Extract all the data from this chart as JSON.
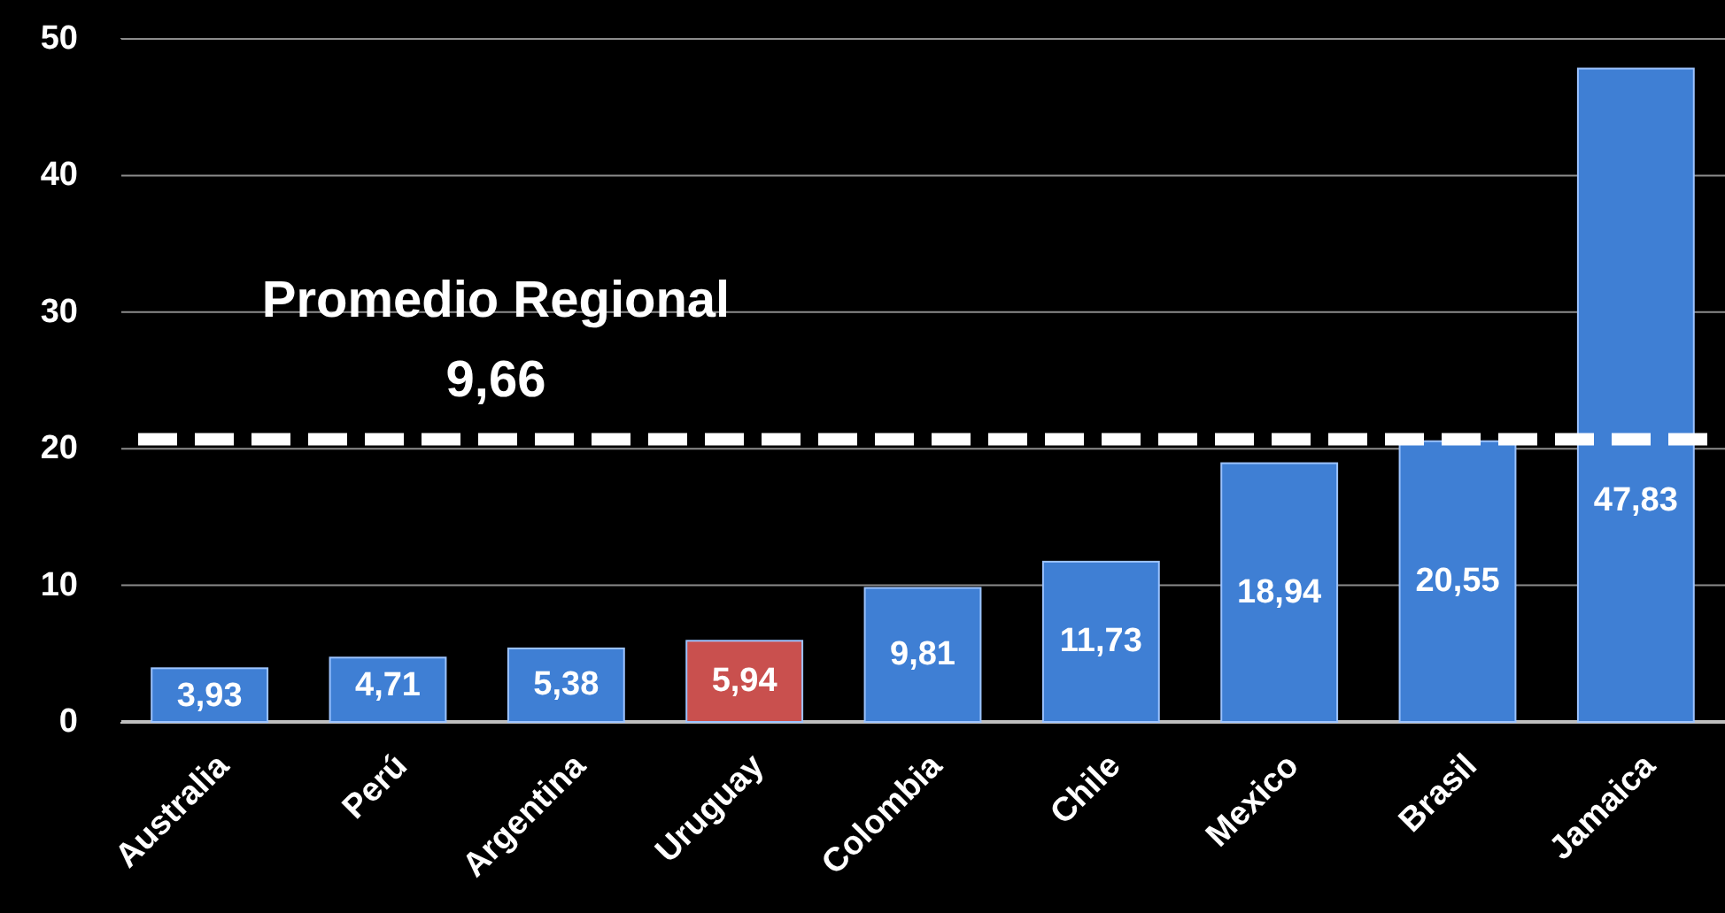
{
  "chart_data": {
    "type": "bar",
    "categories": [
      "Australia",
      "Perú",
      "Argentina",
      "Uruguay",
      "Colombia",
      "Chile",
      "Mexico",
      "Brasil",
      "Jamaica"
    ],
    "values": [
      3.93,
      4.71,
      5.38,
      5.94,
      9.81,
      11.73,
      18.94,
      20.55,
      47.83
    ],
    "colors": [
      "#3f7fd4",
      "#3f7fd4",
      "#3f7fd4",
      "#c9504e",
      "#3f7fd4",
      "#3f7fd4",
      "#3f7fd4",
      "#3f7fd4",
      "#3f7fd4"
    ],
    "value_labels": [
      "3,93",
      "4,71",
      "5,38",
      "5,94",
      "9,81",
      "11,73",
      "18,94",
      "20,55",
      "47,83"
    ],
    "ylim": [
      0,
      50
    ],
    "yticks": [
      0,
      10,
      20,
      30,
      40,
      50
    ],
    "grid": "y",
    "ref_lines": [
      {
        "axis": "y",
        "value": 20.7,
        "label": "Promedio Regional\n9,66",
        "color": "#ffffff",
        "line_style": "dashed"
      }
    ]
  }
}
